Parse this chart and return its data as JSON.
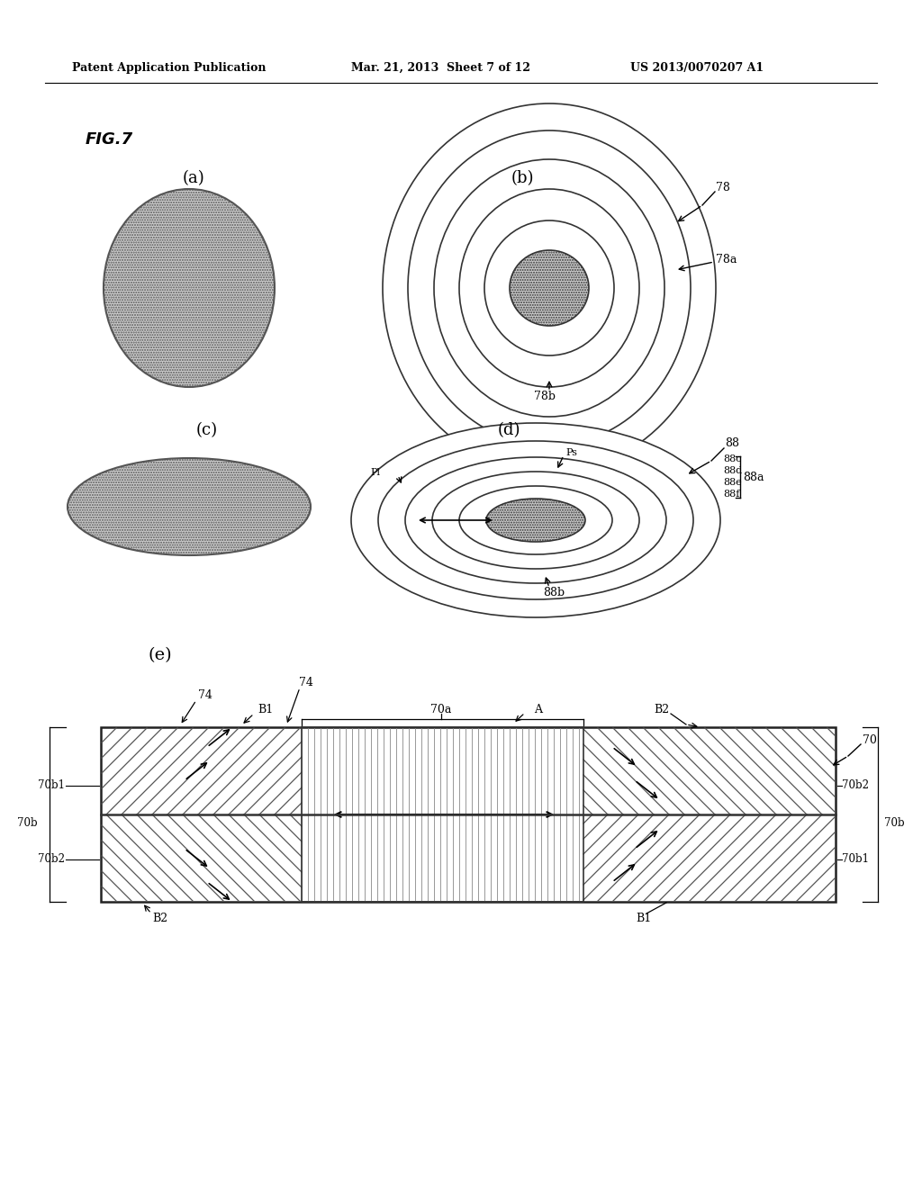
{
  "bg_color": "#ffffff",
  "header_left": "Patent Application Publication",
  "header_mid": "Mar. 21, 2013  Sheet 7 of 12",
  "header_right": "US 2013/0070207 A1",
  "fig_label": "FIG.7",
  "sub_a_label": "(a)",
  "sub_b_label": "(b)",
  "sub_c_label": "(c)",
  "sub_d_label": "(d)",
  "sub_e_label": "(e)"
}
